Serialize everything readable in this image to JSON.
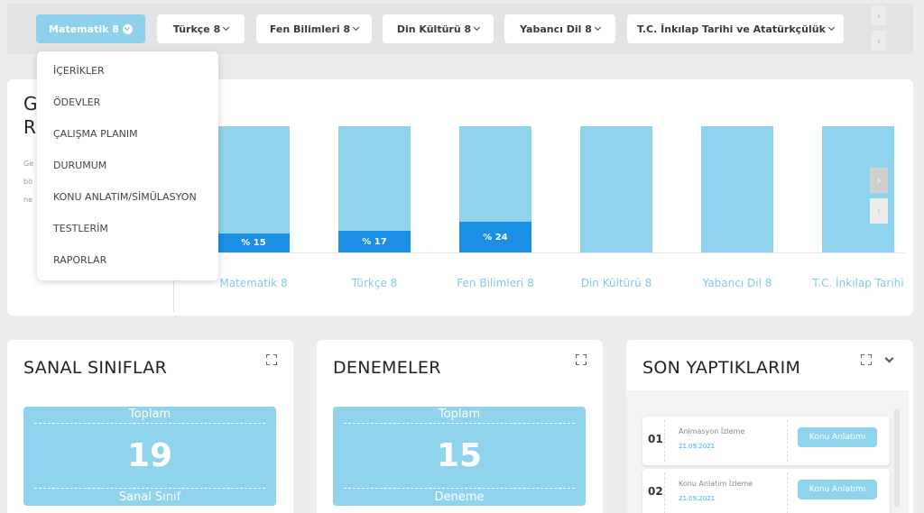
{
  "tabs": [
    {
      "label": "Matematik 8",
      "active": true
    },
    {
      "label": "Türkçe 8",
      "active": false
    },
    {
      "label": "Fen Bilimleri 8",
      "active": false
    },
    {
      "label": "Din Kültürü 8",
      "active": false
    },
    {
      "label": "Yabancı Dil 8",
      "active": false
    },
    {
      "label": "T.C. İnkılap Tarihi ve Atatürkçülük",
      "active": false
    }
  ],
  "dropdown": {
    "items": [
      "İÇERİKLER",
      "ÖDEVLER",
      "ÇALIŞMA PLANIM",
      "DURUMUM",
      "KONU ANLATIM/SİMÜLASYON",
      "TESTLERİM",
      "RAPORLAR"
    ]
  },
  "stats": {
    "title_visible": "G\nR",
    "desc_visible": "Ge\nbö\nne"
  },
  "chart_data": {
    "type": "bar",
    "categories": [
      "Matematik 8",
      "Türkçe 8",
      "Fen Bilimleri 8",
      "Din Kültürü 8",
      "Yabancı Dil 8",
      "T.C. İnkılap Tarihi"
    ],
    "values": [
      15,
      17,
      24,
      null,
      null,
      null
    ],
    "value_labels": [
      "% 15",
      "% 17",
      "% 24",
      "",
      "",
      ""
    ],
    "ylim": [
      0,
      100
    ],
    "colors": {
      "track": "#90d3ec",
      "fill": "#1a8fe6",
      "label": "#86c9e3"
    }
  },
  "cards": {
    "sanal": {
      "title": "SANAL SINIFLAR",
      "total_label": "Toplam",
      "count": "19",
      "unit": "Sanal Sınıf"
    },
    "denemeler": {
      "title": "DENEMELER",
      "total_label": "Toplam",
      "count": "15",
      "unit": "Deneme"
    },
    "son": {
      "title": "SON YAPTIKLARIM",
      "items": [
        {
          "num": "01",
          "activity": "Animasyon İzleme",
          "date": "21.09.2021",
          "button": "Konu Anlatımı"
        },
        {
          "num": "02",
          "activity": "Konu Anlatım İzleme",
          "date": "21.09.2021",
          "button": "Konu Anlatımı"
        }
      ]
    }
  },
  "colors": {
    "accent": "#90d3ec",
    "accent_dark": "#1a8fe6"
  }
}
